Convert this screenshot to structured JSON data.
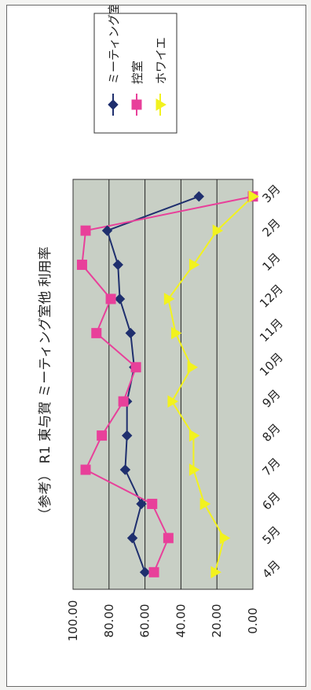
{
  "chart_data": {
    "type": "line",
    "title": "（参考） R1 東与賀 ミーティング室他 利用率",
    "categories": [
      "4月",
      "5月",
      "6月",
      "7月",
      "8月",
      "9月",
      "10月",
      "11月",
      "12月",
      "1月",
      "2月",
      "3月"
    ],
    "ylim": [
      0,
      100
    ],
    "yticks": [
      "0.00",
      "20.00",
      "40.00",
      "60.00",
      "80.00",
      "100.00"
    ],
    "grid": true,
    "legend_position": "top-right",
    "series": [
      {
        "name": "ミーティング室",
        "color": "#1f2f6e",
        "marker": "diamond",
        "values": [
          60,
          67,
          62,
          71,
          70,
          70,
          66,
          68,
          74,
          75,
          81,
          30
        ]
      },
      {
        "name": "控室",
        "color": "#e8409a",
        "marker": "square",
        "values": [
          55,
          47,
          56,
          93,
          84,
          72,
          65,
          87,
          79,
          95,
          93,
          0
        ]
      },
      {
        "name": "ホワイエ",
        "color": "#f2f21e",
        "marker": "triangle",
        "values": [
          21,
          16,
          27,
          33,
          33,
          45,
          34,
          43,
          47,
          33,
          20,
          0
        ]
      }
    ]
  },
  "colors": {
    "plot_bg": "#c8cfc5",
    "grid": "#222222"
  }
}
